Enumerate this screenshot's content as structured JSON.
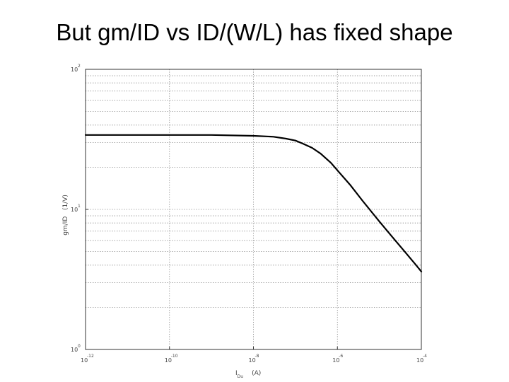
{
  "slide": {
    "title": "But gm/ID vs ID/(W/L) has fixed shape"
  },
  "chart_data": {
    "type": "line",
    "title": "But gm/ID vs ID/(W/L) has fixed shape",
    "xlabel": {
      "main": "I",
      "sub": "Du",
      "unit": "(A)"
    },
    "ylabel": "gm/ID   (1/V)",
    "x_scale": "log",
    "y_scale": "log",
    "xlim": [
      1e-12,
      0.0001
    ],
    "ylim": [
      1,
      100
    ],
    "grid": true,
    "x_ticks": [
      {
        "value": 1e-12,
        "base": "10",
        "exp": "-12"
      },
      {
        "value": 1e-10,
        "base": "10",
        "exp": "-10"
      },
      {
        "value": 1e-08,
        "base": "10",
        "exp": "-8"
      },
      {
        "value": 1e-06,
        "base": "10",
        "exp": "-6"
      },
      {
        "value": 0.0001,
        "base": "10",
        "exp": "-4"
      }
    ],
    "y_ticks": [
      {
        "value": 1,
        "base": "10",
        "exp": "0"
      },
      {
        "value": 10,
        "base": "10",
        "exp": "1"
      },
      {
        "value": 100,
        "base": "10",
        "exp": "2"
      }
    ],
    "series": [
      {
        "color": "#000000",
        "x": [
          1e-12,
          1e-11,
          1e-10,
          1e-09,
          1e-08,
          3e-08,
          6e-08,
          1e-07,
          1.5e-07,
          2.5e-07,
          4e-07,
          7e-07,
          1e-06,
          2e-06,
          4e-06,
          1e-05,
          2e-05,
          4e-05,
          7e-05,
          0.0001
        ],
        "y": [
          34,
          34,
          34,
          34,
          33.5,
          33,
          32,
          31,
          29.5,
          27.5,
          25,
          21.5,
          19,
          15,
          11.5,
          8.2,
          6.4,
          5,
          4.1,
          3.6
        ]
      }
    ]
  }
}
